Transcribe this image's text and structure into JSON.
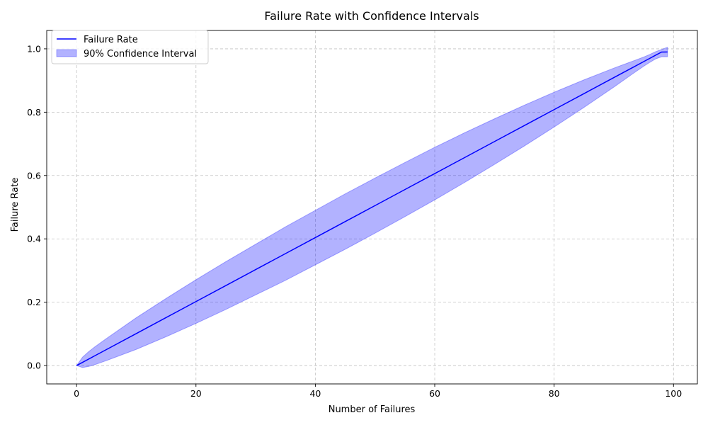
{
  "chart_data": {
    "type": "line",
    "title": "Failure Rate with Confidence Intervals",
    "xlabel": "Number of Failures",
    "ylabel": "Failure Rate",
    "xlim": [
      -5,
      104
    ],
    "ylim": [
      -0.058,
      1.058
    ],
    "x_ticks": [
      0,
      20,
      40,
      60,
      80,
      100
    ],
    "x_tick_labels": [
      "0",
      "20",
      "40",
      "60",
      "80",
      "100"
    ],
    "y_ticks": [
      0.0,
      0.2,
      0.4,
      0.6,
      0.8,
      1.0
    ],
    "y_tick_labels": [
      "0.0",
      "0.2",
      "0.4",
      "0.6",
      "0.8",
      "1.0"
    ],
    "grid": true,
    "legend_position": "top-left",
    "colors": {
      "line": "#0000ff",
      "band_fill": "#0000ff",
      "band_opacity": 0.3
    },
    "x": [
      0,
      1,
      2,
      3,
      4,
      5,
      10,
      15,
      20,
      25,
      30,
      35,
      40,
      45,
      50,
      55,
      60,
      65,
      70,
      75,
      80,
      85,
      90,
      93,
      95,
      96,
      97,
      98,
      99
    ],
    "series": [
      {
        "name": "Failure Rate",
        "values": [
          0.0,
          0.0101,
          0.0202,
          0.0303,
          0.0404,
          0.0505,
          0.101,
          0.1515,
          0.202,
          0.2525,
          0.303,
          0.3535,
          0.404,
          0.4545,
          0.505,
          0.5556,
          0.6061,
          0.6566,
          0.7071,
          0.7576,
          0.8081,
          0.8586,
          0.9091,
          0.9394,
          0.9596,
          0.9697,
          0.9798,
          0.9899,
          0.99
        ]
      },
      {
        "name": "90% Confidence Interval",
        "lower": [
          0.0,
          -0.0063,
          -0.003,
          0.0023,
          0.009,
          0.0156,
          0.051,
          0.091,
          0.133,
          0.177,
          0.223,
          0.269,
          0.318,
          0.367,
          0.418,
          0.47,
          0.523,
          0.578,
          0.635,
          0.693,
          0.753,
          0.815,
          0.879,
          0.919,
          0.945,
          0.957,
          0.968,
          0.975,
          0.975
        ],
        "upper": [
          0.0,
          0.0265,
          0.0434,
          0.0583,
          0.0718,
          0.0854,
          0.151,
          0.212,
          0.271,
          0.328,
          0.383,
          0.438,
          0.49,
          0.542,
          0.592,
          0.641,
          0.689,
          0.735,
          0.779,
          0.822,
          0.863,
          0.902,
          0.939,
          0.96,
          0.974,
          0.982,
          0.991,
          0.998,
          1.005
        ]
      }
    ]
  }
}
